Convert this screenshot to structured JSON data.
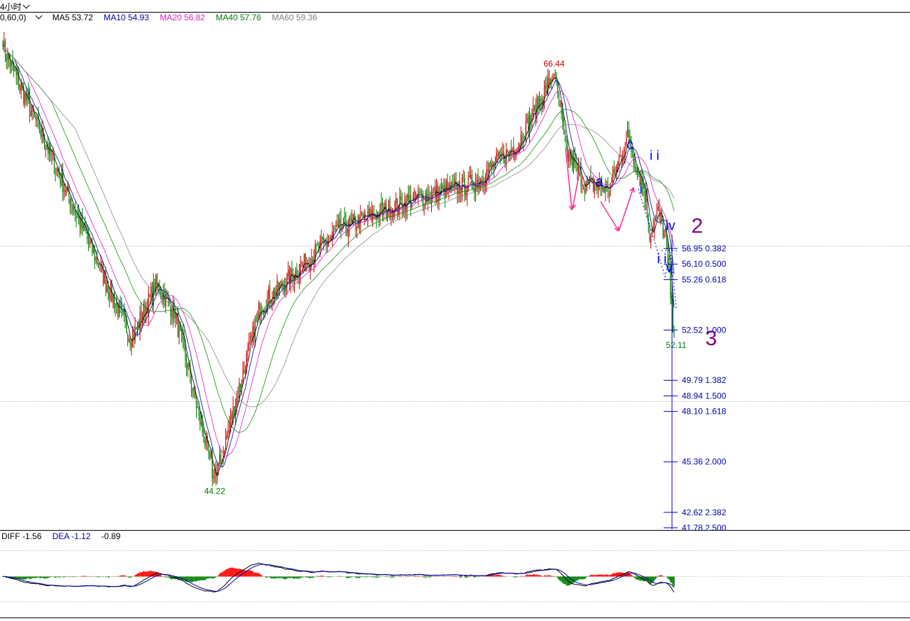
{
  "toolbar": {
    "period_label": "4小时"
  },
  "legend": {
    "params": "0,60,0)",
    "items": [
      {
        "label": "MA5",
        "value": "53.72",
        "color": "#000000"
      },
      {
        "label": "MA10",
        "value": "54.93",
        "color": "#0000aa"
      },
      {
        "label": "MA20",
        "value": "56.82",
        "color": "#e020c0"
      },
      {
        "label": "MA40",
        "value": "57.76",
        "color": "#008000"
      },
      {
        "label": "MA60",
        "value": "59.36",
        "color": "#808080"
      }
    ]
  },
  "macd_legend": {
    "items": [
      {
        "label": "DIFF",
        "value": "-1.56",
        "color": "#000000"
      },
      {
        "label": "DEA",
        "value": "-1.12",
        "color": "#0000aa"
      },
      {
        "label": "",
        "value": "-0.89",
        "color": "#000000"
      }
    ]
  },
  "chart_data": {
    "type": "candlestick",
    "price_range": [
      41.7,
      69.3
    ],
    "key_points": [
      {
        "label": "start",
        "x": 0,
        "y": 67.9
      },
      {
        "label": "low",
        "x": 105,
        "y": 52.0
      },
      {
        "label": "",
        "x": 125,
        "y": 55.0
      },
      {
        "label": "",
        "x": 140,
        "y": 53.5
      },
      {
        "label": "44.22",
        "x": 173,
        "y": 44.22
      },
      {
        "label": "",
        "x": 210,
        "y": 53.8
      },
      {
        "label": "",
        "x": 275,
        "y": 58.0
      },
      {
        "label": "",
        "x": 330,
        "y": 59.5
      },
      {
        "label": "",
        "x": 385,
        "y": 60.5
      },
      {
        "label": "",
        "x": 420,
        "y": 62.6
      },
      {
        "label": "66.44",
        "x": 450,
        "y": 66.44
      },
      {
        "label": "",
        "x": 460,
        "y": 62.2
      },
      {
        "label": "",
        "x": 475,
        "y": 60.5
      },
      {
        "label": "",
        "x": 495,
        "y": 60.2
      },
      {
        "label": "",
        "x": 510,
        "y": 63.0
      },
      {
        "label": "",
        "x": 525,
        "y": 59.8
      },
      {
        "label": "",
        "x": 528,
        "y": 57.8
      },
      {
        "label": "",
        "x": 535,
        "y": 58.9
      },
      {
        "label": "",
        "x": 541,
        "y": 57.6
      },
      {
        "label": "52.11",
        "x": 548,
        "y": 52.11
      }
    ],
    "price_labels": [
      {
        "text": "66.44",
        "price": 66.44,
        "color": "#cc0000"
      },
      {
        "text": "44.22",
        "price": 44.22,
        "color": "#008000"
      },
      {
        "text": "52.11",
        "price": 52.11,
        "color": "#008000"
      }
    ],
    "fib_levels": [
      {
        "price": "56.95",
        "ratio": "0.382"
      },
      {
        "price": "56.10",
        "ratio": "0.500"
      },
      {
        "price": "55.26",
        "ratio": "0.618"
      },
      {
        "price": "52.52",
        "ratio": "1.000"
      },
      {
        "price": "49.79",
        "ratio": "1.382"
      },
      {
        "price": "48.94",
        "ratio": "1.500"
      },
      {
        "price": "48.10",
        "ratio": "1.618"
      },
      {
        "price": "45.36",
        "ratio": "2.000"
      },
      {
        "price": "42.62",
        "ratio": "2.382"
      },
      {
        "price": "41.78",
        "ratio": "2.500"
      }
    ],
    "wave_labels": [
      {
        "text": "a",
        "price": 60.6,
        "color": "#0000ee",
        "size": "large"
      },
      {
        "text": "c",
        "price": 62.6,
        "color": "#0000ee",
        "size": "large"
      },
      {
        "text": "i i",
        "price": 62.0,
        "color": "#0000ee",
        "size": "large"
      },
      {
        "text": "i",
        "price": 60.2,
        "color": "#0000ee",
        "size": "large"
      },
      {
        "text": "iv",
        "price": 58.2,
        "color": "#0000ee",
        "size": "large"
      },
      {
        "text": "i i",
        "price": 56.4,
        "color": "#0000ee",
        "size": "large"
      },
      {
        "text": "v",
        "price": 55.9,
        "color": "#0000ee",
        "size": "large"
      },
      {
        "text": "2",
        "price": 58.2,
        "color": "#800080",
        "size": "huge"
      },
      {
        "text": "3",
        "price": 52.1,
        "color": "#800080",
        "size": "huge"
      }
    ],
    "moving_averages": [
      {
        "name": "MA5",
        "color": "#000000"
      },
      {
        "name": "MA10",
        "color": "#0000aa"
      },
      {
        "name": "MA20",
        "color": "#e020c0"
      },
      {
        "name": "MA40",
        "color": "#008000"
      },
      {
        "name": "MA60",
        "color": "#808080"
      }
    ],
    "candle_colors": {
      "up": "#cc0000",
      "down": "#008000"
    },
    "macd": {
      "diff_last": -1.56,
      "dea_last": -1.12,
      "hist_last": -0.89,
      "hist_up_color": "#ff0000",
      "hist_down_color": "#008000"
    }
  }
}
